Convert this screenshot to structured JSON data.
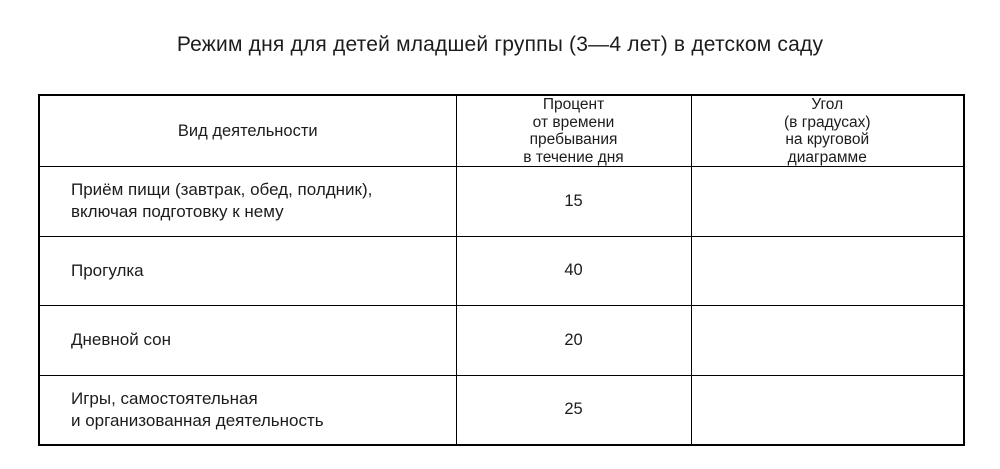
{
  "page": {
    "title": "Режим дня для детей младшей группы (3—4 лет) в детском саду"
  },
  "table": {
    "columns": [
      {
        "header": "Вид деятельности"
      },
      {
        "header": "Процент\nот времени\nпребывания\nв течение дня"
      },
      {
        "header": "Угол\n(в градусах)\nна круговой\nдиаграмме"
      }
    ],
    "rows": [
      {
        "activity": "Приём пищи (завтрак, обед, полдник),\nвключая подготовку к нему",
        "percent": "15",
        "angle": ""
      },
      {
        "activity": "Прогулка",
        "percent": "40",
        "angle": ""
      },
      {
        "activity": "Дневной сон",
        "percent": "20",
        "angle": ""
      },
      {
        "activity": "Игры, самостоятельная\nи организованная деятельность",
        "percent": "25",
        "angle": ""
      }
    ]
  },
  "colors": {
    "text": "#1c1c1c",
    "border": "#000000",
    "background": "#ffffff"
  }
}
